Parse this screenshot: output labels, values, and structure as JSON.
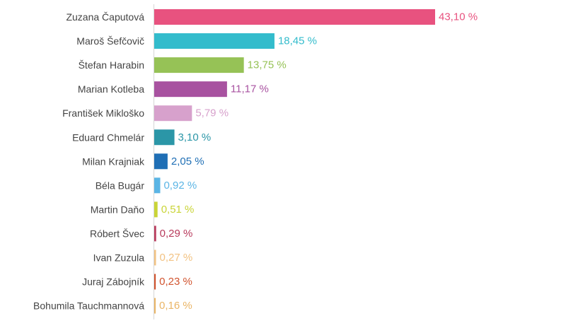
{
  "chart_data": {
    "type": "bar",
    "orientation": "horizontal",
    "title": "",
    "xlabel": "",
    "ylabel": "",
    "xlim": [
      0,
      43.1
    ],
    "grid": false,
    "legend": "none",
    "value_suffix": " %",
    "categories": [
      "Zuzana Čaputová",
      "Maroš Šefčovič",
      "Štefan Harabin",
      "Marian Kotleba",
      "František Mikloško",
      "Eduard Chmelár",
      "Milan Krajniak",
      "Béla Bugár",
      "Martin Daňo",
      "Róbert Švec",
      "Ivan Zuzula",
      "Juraj Zábojník",
      "Bohumila Tauchmannová"
    ],
    "values": [
      43.1,
      18.45,
      13.75,
      11.17,
      5.79,
      3.1,
      2.05,
      0.92,
      0.51,
      0.29,
      0.27,
      0.23,
      0.16
    ],
    "value_labels": [
      "43,10 %",
      "18,45 %",
      "13,75 %",
      "11,17 %",
      "5,79 %",
      "3,10 %",
      "2,05 %",
      "0,92 %",
      "0,51 %",
      "0,29 %",
      "0,27 %",
      "0,23 %",
      "0,16 %"
    ],
    "colors": [
      "#e8527f",
      "#33bccc",
      "#96c256",
      "#a852a0",
      "#d7a1cc",
      "#2b96a7",
      "#1f6fb5",
      "#5bb5e5",
      "#c9d436",
      "#b83a5c",
      "#f2c282",
      "#d1542f",
      "#eab566"
    ],
    "axis_line_color": "#d6d6d6"
  }
}
